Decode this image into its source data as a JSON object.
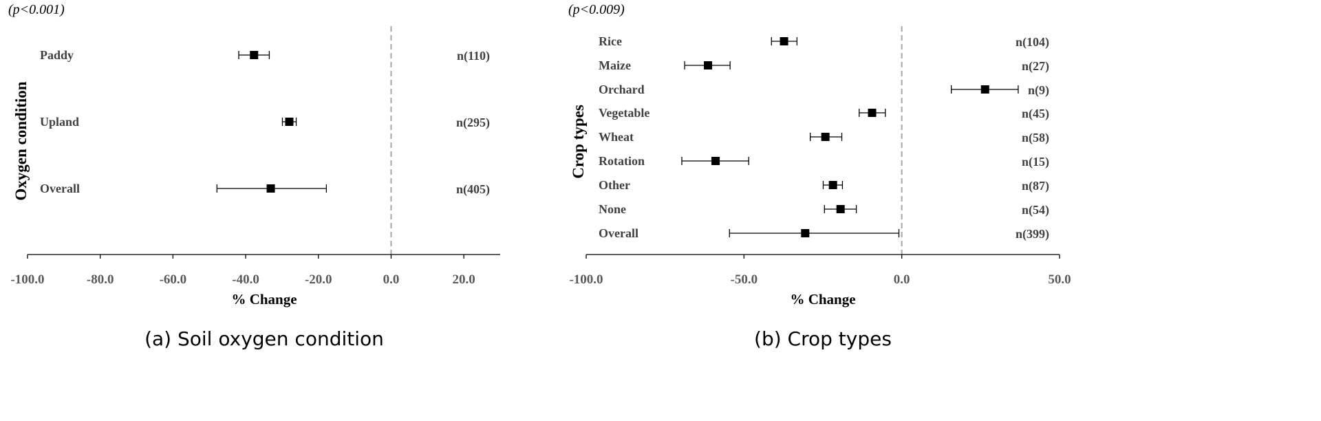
{
  "chart_data": [
    {
      "type": "forest",
      "caption": "(a) Soil oxygen condition",
      "pvalue": "(p<0.001)",
      "xlabel": "%  Change",
      "ylabel": "Oxygen condition",
      "xlim": [
        -100,
        30
      ],
      "xticks": [
        -100,
        -80,
        -60,
        -40,
        -20,
        0,
        20
      ],
      "xtick_labels": [
        "-100.0",
        "-80.0",
        "-60.0",
        "-40.0",
        "-20.0",
        "0.0",
        "20.0"
      ],
      "reference_line": 0,
      "rows": [
        {
          "label": "Paddy",
          "n": "n(110)",
          "mean": -37.7,
          "lo": -41.9,
          "hi": -33.5
        },
        {
          "label": "Upland",
          "n": "n(295)",
          "mean": -28.0,
          "lo": -29.9,
          "hi": -26.1
        },
        {
          "label": "Overall",
          "n": "n(405)",
          "mean": -33.1,
          "lo": -47.9,
          "hi": -17.8
        }
      ]
    },
    {
      "type": "forest",
      "caption": "(b) Crop types",
      "pvalue": "(p<0.009)",
      "xlabel": "%  Change",
      "ylabel": "Crop types",
      "xlim": [
        -100,
        50
      ],
      "xticks": [
        -100,
        -50,
        0,
        50
      ],
      "xtick_labels": [
        "-100.0",
        "-50.0",
        "0.0",
        "50.0"
      ],
      "reference_line": 0,
      "rows": [
        {
          "label": "Rice",
          "n": "n(104)",
          "mean": -37.3,
          "lo": -41.3,
          "hi": -33.2
        },
        {
          "label": "Maize",
          "n": "n(27)",
          "mean": -61.4,
          "lo": -68.8,
          "hi": -54.4
        },
        {
          "label": "Orchard",
          "n": "n(9)",
          "mean": 26.4,
          "lo": 15.7,
          "hi": 36.9
        },
        {
          "label": "Vegetable",
          "n": "n(45)",
          "mean": -9.4,
          "lo": -13.5,
          "hi": -5.2
        },
        {
          "label": "Wheat",
          "n": "n(58)",
          "mean": -24.2,
          "lo": -29.0,
          "hi": -19.0
        },
        {
          "label": "Rotation",
          "n": "n(15)",
          "mean": -59.0,
          "lo": -69.7,
          "hi": -48.5
        },
        {
          "label": "Other",
          "n": "n(87)",
          "mean": -21.8,
          "lo": -24.9,
          "hi": -18.8
        },
        {
          "label": "None",
          "n": "n(54)",
          "mean": -19.4,
          "lo": -24.5,
          "hi": -14.4
        },
        {
          "label": "Overall",
          "n": "n(399)",
          "mean": -30.6,
          "lo": -54.6,
          "hi": -0.9
        }
      ]
    }
  ]
}
